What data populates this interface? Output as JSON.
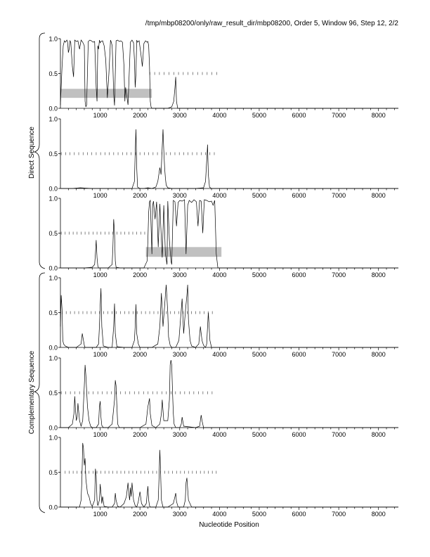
{
  "header": "/tmp/mbp08200/only/raw_result_dir/mbp08200, Order 5, Window 96, Step 12, 2/2",
  "group_labels": [
    "Direct Sequence",
    "Complementary Sequence"
  ],
  "xlabel": "Nucleotide Position",
  "colors": {
    "line": "#000000",
    "band": "#c0c0c0",
    "axis": "#000000"
  },
  "chart_data": [
    {
      "type": "line",
      "panel": 1,
      "strand": "direct",
      "frame": 1,
      "xlim": [
        0,
        8500
      ],
      "ylim": [
        0.0,
        1.0
      ],
      "xticks": [
        "1000",
        "2000",
        "3000",
        "4000",
        "5000",
        "6000",
        "7000",
        "8000"
      ],
      "yticks": [
        "0.0",
        "0.5",
        "1.0"
      ],
      "x": [
        0,
        40,
        70,
        100,
        130,
        160,
        180,
        200,
        220,
        240,
        260,
        300,
        330,
        360,
        400,
        440,
        480,
        520,
        560,
        600,
        620,
        640,
        660,
        700,
        740,
        780,
        820,
        860,
        900,
        920,
        940,
        960,
        980,
        1000,
        1020,
        1060,
        1100,
        1140,
        1180,
        1220,
        1260,
        1280,
        1300,
        1320,
        1340,
        1360,
        1400,
        1440,
        1480,
        1520,
        1560,
        1600,
        1620,
        1640,
        1700,
        1760,
        1800,
        1840,
        1860,
        1880,
        1900,
        1920,
        1940,
        1980,
        2020,
        2060,
        2100,
        2140,
        2180,
        2200,
        2220,
        2240,
        2260,
        2280,
        2300,
        2400,
        2500,
        2600,
        2700,
        2800,
        2850,
        2880,
        2900,
        2920,
        2950,
        3000,
        3200,
        3600,
        4000,
        5000,
        6000,
        7000,
        8000,
        8500
      ],
      "values": [
        0.05,
        0.6,
        0.9,
        0.97,
        0.95,
        0.98,
        0.96,
        0.8,
        0.85,
        0.97,
        0.95,
        0.6,
        0.45,
        0.98,
        0.96,
        0.97,
        0.85,
        0.98,
        0.95,
        0.9,
        0.1,
        0.02,
        0.05,
        0.96,
        0.98,
        0.97,
        0.95,
        0.96,
        0.3,
        0.1,
        0.9,
        0.85,
        0.98,
        0.94,
        0.96,
        0.97,
        0.9,
        0.7,
        0.15,
        0.5,
        0.98,
        0.95,
        0.9,
        0.6,
        0.2,
        0.04,
        0.97,
        0.98,
        0.96,
        0.97,
        0.95,
        0.6,
        0.1,
        0.3,
        0.05,
        0.95,
        0.98,
        0.94,
        0.7,
        0.3,
        0.5,
        0.98,
        0.95,
        0.97,
        0.8,
        0.6,
        0.93,
        0.97,
        0.95,
        0.96,
        0.9,
        0.6,
        0.1,
        0.02,
        0.0,
        0.0,
        0.0,
        0.0,
        0.0,
        0.02,
        0.1,
        0.3,
        0.45,
        0.1,
        0.0,
        0.0,
        0.0,
        0.0,
        0.0,
        0.0,
        0.0,
        0.0,
        0.0,
        0.0
      ],
      "ticks": {
        "y": 0.5,
        "from": 2250,
        "to": 3950,
        "step": 120
      },
      "band": {
        "x": [
          20,
          2300
        ],
        "y": [
          0.15,
          0.28
        ]
      }
    },
    {
      "type": "line",
      "panel": 2,
      "strand": "direct",
      "frame": 2,
      "xlim": [
        0,
        8500
      ],
      "ylim": [
        0.0,
        1.0
      ],
      "xticks": [
        "1000",
        "2000",
        "3000",
        "4000",
        "5000",
        "6000",
        "7000",
        "8000"
      ],
      "yticks": [
        "0.0",
        "0.5",
        "1.0"
      ],
      "x": [
        0,
        300,
        500,
        800,
        1200,
        1600,
        1800,
        1860,
        1880,
        1900,
        1920,
        1940,
        2000,
        2100,
        2200,
        2300,
        2400,
        2450,
        2500,
        2530,
        2560,
        2580,
        2600,
        2620,
        2640,
        2660,
        2700,
        2800,
        3000,
        3200,
        3400,
        3600,
        3650,
        3680,
        3700,
        3720,
        3750,
        3800,
        4000,
        5000,
        6000,
        7000,
        8000,
        8500
      ],
      "values": [
        0.0,
        0.0,
        0.01,
        0.0,
        0.0,
        0.0,
        0.0,
        0.1,
        0.5,
        0.85,
        0.3,
        0.02,
        0.0,
        0.0,
        0.01,
        0.0,
        0.02,
        0.1,
        0.3,
        0.2,
        0.6,
        0.85,
        0.55,
        0.3,
        0.15,
        0.05,
        0.01,
        0.0,
        0.0,
        0.0,
        0.0,
        0.01,
        0.1,
        0.4,
        0.63,
        0.2,
        0.02,
        0.0,
        0.0,
        0.0,
        0.0,
        0.0,
        0.0,
        0.0
      ],
      "ticks": {
        "y": 0.5,
        "from": 20,
        "to": 3950,
        "step": 110
      }
    },
    {
      "type": "line",
      "panel": 3,
      "strand": "direct",
      "frame": 3,
      "xlim": [
        0,
        8500
      ],
      "ylim": [
        0.0,
        1.0
      ],
      "xticks": [
        "1000",
        "2000",
        "3000",
        "4000",
        "5000",
        "6000",
        "7000",
        "8000"
      ],
      "yticks": [
        "0.0",
        "0.5",
        "1.0"
      ],
      "x": [
        0,
        300,
        600,
        800,
        860,
        880,
        900,
        920,
        940,
        960,
        1000,
        1200,
        1300,
        1320,
        1340,
        1360,
        1380,
        1400,
        1500,
        1700,
        1900,
        2100,
        2180,
        2200,
        2220,
        2240,
        2260,
        2280,
        2300,
        2320,
        2340,
        2380,
        2420,
        2460,
        2500,
        2540,
        2560,
        2600,
        2640,
        2680,
        2700,
        2740,
        2780,
        2800,
        2840,
        2880,
        2920,
        2960,
        3000,
        3060,
        3120,
        3160,
        3200,
        3240,
        3300,
        3360,
        3420,
        3460,
        3500,
        3540,
        3580,
        3620,
        3680,
        3740,
        3800,
        3840,
        3880,
        3920,
        3960,
        4000,
        4100,
        5000,
        6000,
        7000,
        8000,
        8500
      ],
      "values": [
        0.0,
        0.0,
        0.0,
        0.01,
        0.05,
        0.2,
        0.4,
        0.15,
        0.03,
        0.0,
        0.0,
        0.0,
        0.05,
        0.3,
        0.7,
        0.5,
        0.1,
        0.01,
        0.0,
        0.0,
        0.0,
        0.0,
        0.1,
        0.4,
        0.8,
        0.95,
        0.97,
        0.6,
        0.2,
        0.9,
        0.96,
        0.7,
        0.95,
        0.3,
        0.92,
        0.4,
        0.15,
        0.9,
        0.2,
        0.05,
        0.96,
        0.4,
        0.1,
        0.05,
        0.97,
        0.95,
        0.6,
        0.94,
        0.97,
        0.96,
        0.98,
        0.2,
        0.9,
        0.97,
        0.94,
        0.98,
        0.95,
        0.6,
        0.97,
        0.96,
        0.5,
        0.98,
        0.97,
        0.95,
        0.96,
        0.9,
        0.97,
        0.2,
        0.0,
        0.0,
        0.0,
        0.0,
        0.0,
        0.0,
        0.0,
        0.0
      ],
      "ticks": {
        "y": 0.5,
        "from": 20,
        "to": 2200,
        "step": 100
      },
      "band": {
        "x": [
          2150,
          4050
        ],
        "y": [
          0.16,
          0.3
        ]
      }
    },
    {
      "type": "line",
      "panel": 4,
      "strand": "complementary",
      "frame": 1,
      "xlim": [
        0,
        8500
      ],
      "ylim": [
        0.0,
        1.0
      ],
      "xticks": [
        "1000",
        "2000",
        "3000",
        "4000",
        "5000",
        "6000",
        "7000",
        "8000"
      ],
      "yticks": [
        "0.0",
        "0.5",
        "1.0"
      ],
      "x": [
        0,
        20,
        40,
        60,
        80,
        120,
        200,
        400,
        520,
        550,
        580,
        600,
        620,
        700,
        900,
        960,
        980,
        1000,
        1020,
        1040,
        1080,
        1200,
        1300,
        1340,
        1360,
        1380,
        1420,
        1600,
        1800,
        1860,
        1880,
        1900,
        1920,
        1960,
        2000,
        2100,
        2300,
        2450,
        2500,
        2540,
        2580,
        2620,
        2660,
        2700,
        2720,
        2760,
        2800,
        2900,
        2980,
        3020,
        3060,
        3100,
        3140,
        3180,
        3200,
        3220,
        3260,
        3300,
        3400,
        3480,
        3520,
        3560,
        3600,
        3650,
        3680,
        3700,
        3720,
        3760,
        3800,
        4000,
        5000,
        6000,
        7000,
        8000,
        8500
      ],
      "values": [
        0.3,
        0.75,
        0.55,
        0.1,
        0.05,
        0.02,
        0.0,
        0.0,
        0.05,
        0.2,
        0.1,
        0.03,
        0.0,
        0.0,
        0.0,
        0.05,
        0.3,
        0.6,
        0.85,
        0.3,
        0.02,
        0.0,
        0.0,
        0.3,
        0.63,
        0.2,
        0.01,
        0.0,
        0.0,
        0.1,
        0.3,
        0.62,
        0.2,
        0.05,
        0.0,
        0.0,
        0.0,
        0.05,
        0.3,
        0.78,
        0.3,
        0.6,
        0.9,
        0.5,
        0.15,
        0.03,
        0.0,
        0.0,
        0.1,
        0.4,
        0.7,
        0.2,
        0.5,
        0.75,
        0.9,
        0.4,
        0.1,
        0.02,
        0.0,
        0.05,
        0.3,
        0.1,
        0.03,
        0.0,
        0.05,
        0.3,
        0.5,
        0.1,
        0.0,
        0.0,
        0.0,
        0.0,
        0.0,
        0.0,
        0.0
      ],
      "ticks": {
        "y": 0.5,
        "from": 40,
        "to": 3900,
        "step": 105
      }
    },
    {
      "type": "line",
      "panel": 5,
      "strand": "complementary",
      "frame": 2,
      "xlim": [
        0,
        8500
      ],
      "ylim": [
        0.0,
        1.0
      ],
      "xticks": [
        "1000",
        "2000",
        "3000",
        "4000",
        "5000",
        "6000",
        "7000",
        "8000"
      ],
      "yticks": [
        "0.0",
        "0.5",
        "1.0"
      ],
      "x": [
        0,
        200,
        300,
        340,
        360,
        380,
        400,
        420,
        440,
        480,
        520,
        560,
        600,
        620,
        640,
        680,
        720,
        760,
        800,
        900,
        960,
        980,
        1000,
        1020,
        1040,
        1080,
        1200,
        1300,
        1360,
        1380,
        1400,
        1420,
        1440,
        1480,
        1600,
        1800,
        2000,
        2150,
        2200,
        2240,
        2260,
        2300,
        2400,
        2500,
        2540,
        2560,
        2600,
        2700,
        2740,
        2760,
        2780,
        2800,
        2820,
        2840,
        2860,
        2900,
        3000,
        3040,
        3060,
        3100,
        3400,
        3500,
        3540,
        3560,
        3600,
        4000,
        5000,
        6000,
        7000,
        8000,
        8500
      ],
      "values": [
        0.0,
        0.0,
        0.05,
        0.2,
        0.45,
        0.25,
        0.1,
        0.15,
        0.35,
        0.1,
        0.02,
        0.1,
        0.6,
        0.9,
        0.75,
        0.3,
        0.1,
        0.02,
        0.0,
        0.0,
        0.05,
        0.3,
        0.38,
        0.15,
        0.03,
        0.0,
        0.0,
        0.05,
        0.4,
        0.68,
        0.6,
        0.3,
        0.05,
        0.0,
        0.0,
        0.0,
        0.0,
        0.05,
        0.3,
        0.42,
        0.2,
        0.03,
        0.0,
        0.05,
        0.2,
        0.4,
        0.1,
        0.1,
        0.4,
        0.9,
        0.97,
        0.9,
        0.5,
        0.2,
        0.05,
        0.0,
        0.0,
        0.05,
        0.15,
        0.02,
        0.0,
        0.02,
        0.18,
        0.1,
        0.0,
        0.0,
        0.0,
        0.0,
        0.0,
        0.0,
        0.0
      ],
      "ticks": {
        "y": 0.5,
        "from": 20,
        "to": 3850,
        "step": 115
      }
    },
    {
      "type": "line",
      "panel": 6,
      "strand": "complementary",
      "frame": 3,
      "xlim": [
        0,
        8500
      ],
      "ylim": [
        0.0,
        1.0
      ],
      "xticks": [
        "1000",
        "2000",
        "3000",
        "4000",
        "5000",
        "6000",
        "7000",
        "8000"
      ],
      "yticks": [
        "0.0",
        "0.5",
        "1.0"
      ],
      "x": [
        0,
        300,
        480,
        520,
        540,
        560,
        580,
        600,
        620,
        640,
        680,
        720,
        760,
        800,
        860,
        880,
        900,
        920,
        940,
        980,
        1000,
        1020,
        1040,
        1060,
        1100,
        1200,
        1300,
        1360,
        1380,
        1400,
        1440,
        1500,
        1600,
        1660,
        1700,
        1720,
        1740,
        1760,
        1780,
        1800,
        1840,
        1880,
        1920,
        1960,
        2000,
        2040,
        2100,
        2160,
        2200,
        2220,
        2240,
        2260,
        2300,
        2400,
        2460,
        2480,
        2500,
        2520,
        2540,
        2580,
        2700,
        2840,
        2880,
        2900,
        2920,
        2960,
        3000,
        3100,
        3140,
        3160,
        3180,
        3220,
        3300,
        4000,
        5000,
        6000,
        7000,
        8000,
        8500
      ],
      "values": [
        0.0,
        0.0,
        0.0,
        0.1,
        0.4,
        0.92,
        0.85,
        0.6,
        0.7,
        0.4,
        0.2,
        0.15,
        0.05,
        0.01,
        0.1,
        0.55,
        0.45,
        0.1,
        0.02,
        0.1,
        0.33,
        0.2,
        0.05,
        0.15,
        0.01,
        0.0,
        0.0,
        0.05,
        0.2,
        0.1,
        0.01,
        0.0,
        0.05,
        0.15,
        0.35,
        0.2,
        0.1,
        0.28,
        0.15,
        0.35,
        0.1,
        0.02,
        0.0,
        0.08,
        0.22,
        0.05,
        0.0,
        0.05,
        0.3,
        0.1,
        0.02,
        0.0,
        0.0,
        0.0,
        0.1,
        0.4,
        0.82,
        0.5,
        0.1,
        0.0,
        0.0,
        0.05,
        0.15,
        0.2,
        0.08,
        0.0,
        0.0,
        0.0,
        0.1,
        0.35,
        0.42,
        0.1,
        0.0,
        0.0,
        0.0,
        0.0,
        0.0,
        0.0,
        0.0
      ],
      "ticks": {
        "y": 0.5,
        "from": 120,
        "to": 3950,
        "step": 100
      }
    }
  ]
}
